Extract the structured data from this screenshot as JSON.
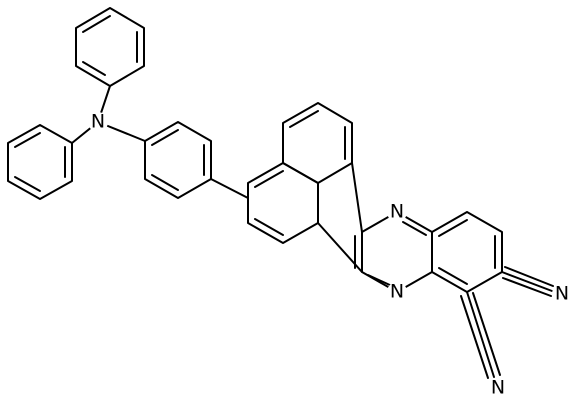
{
  "atoms": [
    {
      "label": "N"
    },
    {
      "label": "N"
    },
    {
      "label": "N"
    },
    {
      "label": "N"
    },
    {
      "label": "N"
    }
  ]
}
